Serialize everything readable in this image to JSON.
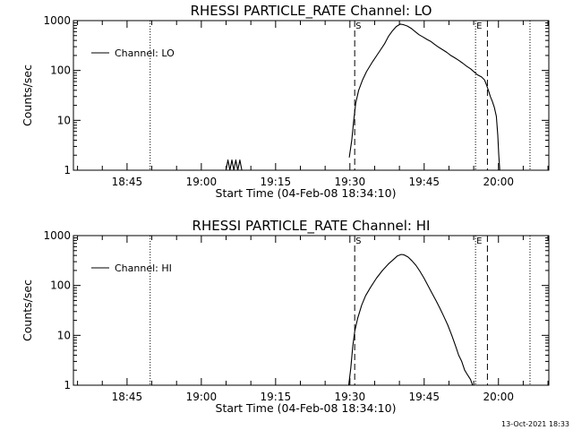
{
  "footer": {
    "timestamp": "13-Oct-2021 18:33"
  },
  "chart_data": [
    {
      "type": "line",
      "title": "RHESSI PARTICLE_RATE Channel: LO",
      "xlabel": "Start Time (04-Feb-08 18:34:10)",
      "ylabel": "Counts/sec",
      "x_unit": "minutes after 18:34:10",
      "xlim": [
        0,
        96
      ],
      "ylim": [
        1,
        1000
      ],
      "yscale": "log",
      "xticks": [
        {
          "label": "18:45",
          "x": 10.83
        },
        {
          "label": "19:00",
          "x": 25.83
        },
        {
          "label": "19:15",
          "x": 40.83
        },
        {
          "label": "19:30",
          "x": 55.83
        },
        {
          "label": "19:45",
          "x": 70.83
        },
        {
          "label": "20:00",
          "x": 85.83
        }
      ],
      "yticks": [
        {
          "label": "1",
          "y": 1
        },
        {
          "label": "10",
          "y": 10
        },
        {
          "label": "100",
          "y": 100
        },
        {
          "label": "1000",
          "y": 1000
        }
      ],
      "legend": {
        "position": "top-left",
        "label": "Channel: LO"
      },
      "markers": [
        {
          "label": "",
          "x": 15.5,
          "style": "dotted"
        },
        {
          "label": "S",
          "x": 56.8,
          "style": "dashed"
        },
        {
          "label": "E",
          "x": 81.2,
          "style": "dotted"
        },
        {
          "label": "",
          "x": 83.6,
          "style": "dashed"
        },
        {
          "label": "",
          "x": 92.2,
          "style": "dotted"
        }
      ],
      "series": [
        {
          "name": "Channel: LO",
          "segments": [
            [
              [
                30.8,
                1
              ],
              [
                31.2,
                1.6
              ],
              [
                31.6,
                1
              ],
              [
                32.0,
                1.6
              ],
              [
                32.4,
                1
              ],
              [
                32.8,
                1.6
              ],
              [
                33.2,
                1
              ],
              [
                33.6,
                1.6
              ],
              [
                34.0,
                1
              ]
            ],
            [
              [
                55.7,
                1.8
              ],
              [
                56.2,
                4
              ],
              [
                56.6,
                10
              ],
              [
                57.0,
                22
              ],
              [
                57.6,
                40
              ],
              [
                58.4,
                65
              ],
              [
                59.2,
                95
              ],
              [
                60.4,
                150
              ],
              [
                61.8,
                240
              ],
              [
                62.8,
                340
              ],
              [
                63.6,
                480
              ],
              [
                64.4,
                620
              ],
              [
                65.2,
                760
              ],
              [
                66.0,
                850
              ],
              [
                66.6,
                830
              ],
              [
                67.4,
                780
              ],
              [
                68.2,
                700
              ],
              [
                69.0,
                600
              ],
              [
                69.8,
                520
              ],
              [
                70.6,
                470
              ],
              [
                71.4,
                420
              ],
              [
                72.2,
                380
              ],
              [
                73.0,
                330
              ],
              [
                73.8,
                290
              ],
              [
                74.6,
                260
              ],
              [
                75.4,
                230
              ],
              [
                76.2,
                200
              ],
              [
                77.0,
                180
              ],
              [
                77.8,
                160
              ],
              [
                78.6,
                140
              ],
              [
                79.4,
                122
              ],
              [
                80.2,
                108
              ],
              [
                81.0,
                92
              ],
              [
                81.6,
                82
              ],
              [
                82.4,
                74
              ],
              [
                83.0,
                65
              ],
              [
                83.4,
                52
              ],
              [
                83.8,
                40
              ],
              [
                84.2,
                30
              ],
              [
                84.6,
                24
              ],
              [
                85.0,
                18
              ],
              [
                85.4,
                12
              ],
              [
                85.7,
                5
              ],
              [
                85.9,
                2
              ],
              [
                86.1,
                1
              ]
            ]
          ]
        }
      ]
    },
    {
      "type": "line",
      "title": "RHESSI PARTICLE_RATE Channel: HI",
      "xlabel": "Start Time (04-Feb-08 18:34:10)",
      "ylabel": "Counts/sec",
      "x_unit": "minutes after 18:34:10",
      "xlim": [
        0,
        96
      ],
      "ylim": [
        1,
        1000
      ],
      "yscale": "log",
      "xticks": [
        {
          "label": "18:45",
          "x": 10.83
        },
        {
          "label": "19:00",
          "x": 25.83
        },
        {
          "label": "19:15",
          "x": 40.83
        },
        {
          "label": "19:30",
          "x": 55.83
        },
        {
          "label": "19:45",
          "x": 70.83
        },
        {
          "label": "20:00",
          "x": 85.83
        }
      ],
      "yticks": [
        {
          "label": "1",
          "y": 1
        },
        {
          "label": "10",
          "y": 10
        },
        {
          "label": "100",
          "y": 100
        },
        {
          "label": "1000",
          "y": 1000
        }
      ],
      "legend": {
        "position": "top-left",
        "label": "Channel: HI"
      },
      "markers": [
        {
          "label": "",
          "x": 15.5,
          "style": "dotted"
        },
        {
          "label": "S",
          "x": 56.8,
          "style": "dashed"
        },
        {
          "label": "E",
          "x": 81.2,
          "style": "dotted"
        },
        {
          "label": "",
          "x": 83.6,
          "style": "dashed"
        },
        {
          "label": "",
          "x": 92.2,
          "style": "dotted"
        }
      ],
      "series": [
        {
          "name": "Channel: HI",
          "segments": [
            [
              [
                55.6,
                1
              ],
              [
                56.0,
                2.2
              ],
              [
                56.4,
                6
              ],
              [
                56.8,
                12
              ],
              [
                57.4,
                22
              ],
              [
                58.2,
                40
              ],
              [
                59.0,
                62
              ],
              [
                60.0,
                92
              ],
              [
                61.2,
                140
              ],
              [
                62.4,
                200
              ],
              [
                63.6,
                270
              ],
              [
                64.6,
                330
              ],
              [
                65.4,
                390
              ],
              [
                66.2,
                420
              ],
              [
                66.8,
                410
              ],
              [
                67.6,
                370
              ],
              [
                68.4,
                310
              ],
              [
                69.2,
                250
              ],
              [
                70.0,
                190
              ],
              [
                70.8,
                140
              ],
              [
                71.6,
                100
              ],
              [
                72.4,
                70
              ],
              [
                73.2,
                50
              ],
              [
                74.0,
                35
              ],
              [
                74.8,
                24
              ],
              [
                75.6,
                16
              ],
              [
                76.4,
                10
              ],
              [
                77.2,
                6
              ],
              [
                77.8,
                4
              ],
              [
                78.4,
                3
              ],
              [
                79.0,
                2
              ],
              [
                79.6,
                1.6
              ],
              [
                80.2,
                1.3
              ],
              [
                80.6,
                1
              ]
            ]
          ]
        }
      ]
    }
  ]
}
